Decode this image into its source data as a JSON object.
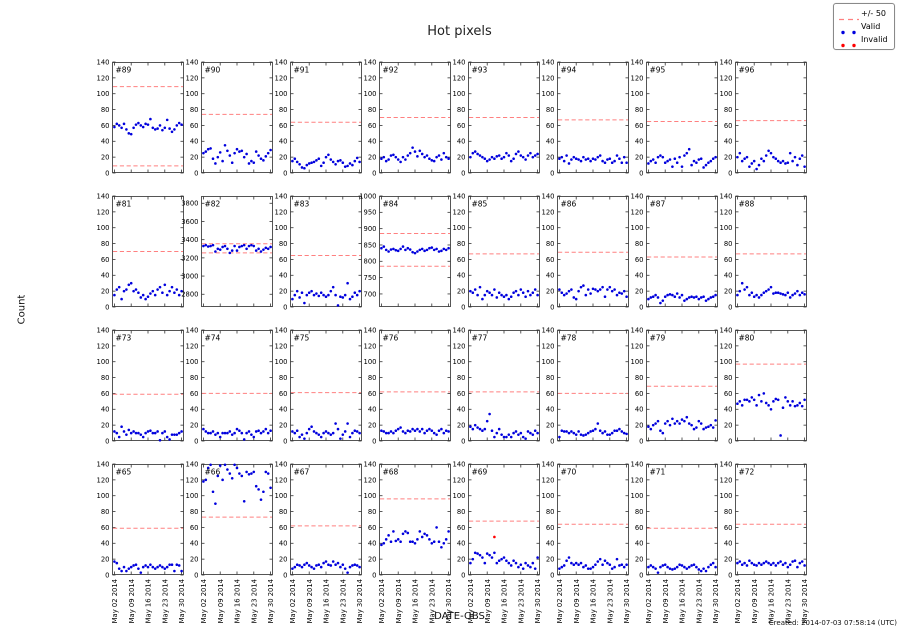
{
  "chart_data": {
    "type": "scatter",
    "title": "Hot pixels",
    "xlabel": "DATE-OBS",
    "ylabel": "Count",
    "created_note": "Created: 2014-07-03 07:58:14 (UTC)",
    "grid": false,
    "x_range_days": [
      1,
      31
    ],
    "x_tick_days": [
      2,
      9,
      16,
      23,
      30
    ],
    "x_tick_labels": [
      "May 02 2014",
      "May 09 2014",
      "May 16 2014",
      "May 23 2014",
      "May 30 2014"
    ],
    "start_day": 2,
    "default_ylim": [
      0,
      140
    ],
    "default_yticks": [
      0,
      20,
      40,
      60,
      80,
      100,
      120,
      140
    ],
    "colors": {
      "valid": "#0000dd",
      "invalid": "#ff0000",
      "threshold": "#ff8080",
      "frame": "#555555",
      "tick": "#333333",
      "text": "#000000"
    },
    "legend": {
      "position": "top-right",
      "items": [
        {
          "label": "+/- 50",
          "marker": "dashed-line",
          "color": "#ff8080"
        },
        {
          "label": "Valid",
          "marker": "dots",
          "color": "#0000dd"
        },
        {
          "label": "Invalid",
          "marker": "dots",
          "color": "#ff0000"
        }
      ]
    },
    "panels": [
      {
        "id": "#89",
        "upper": 109,
        "lower": 9,
        "values": [
          58,
          62,
          60,
          57,
          62,
          55,
          50,
          49,
          57,
          61,
          63,
          60,
          58,
          62,
          61,
          68,
          57,
          55,
          56,
          60,
          54,
          57,
          67,
          56,
          52,
          55,
          60,
          63,
          61
        ]
      },
      {
        "id": "#90",
        "upper": 74,
        "values": [
          25,
          27,
          30,
          31,
          18,
          12,
          20,
          26,
          15,
          35,
          28,
          22,
          13,
          25,
          30,
          27,
          28,
          20,
          24,
          12,
          15,
          13,
          27,
          22,
          18,
          16,
          21,
          25,
          29
        ]
      },
      {
        "id": "#91",
        "upper": 64,
        "values": [
          15,
          18,
          14,
          11,
          7,
          6,
          10,
          12,
          13,
          14,
          16,
          18,
          9,
          13,
          20,
          23,
          17,
          14,
          11,
          15,
          16,
          13,
          8,
          9,
          12,
          10,
          15,
          19,
          14
        ]
      },
      {
        "id": "#92",
        "upper": 70,
        "values": [
          18,
          20,
          15,
          17,
          22,
          23,
          20,
          17,
          14,
          20,
          17,
          22,
          25,
          32,
          27,
          21,
          28,
          24,
          20,
          22,
          18,
          16,
          15,
          20,
          22,
          17,
          25,
          20,
          18
        ]
      },
      {
        "id": "#93",
        "upper": 70,
        "values": [
          20,
          25,
          27,
          24,
          22,
          20,
          18,
          15,
          17,
          20,
          18,
          21,
          22,
          18,
          20,
          25,
          22,
          15,
          18,
          24,
          27,
          22,
          20,
          17,
          22,
          25,
          20,
          22,
          24
        ]
      },
      {
        "id": "#94",
        "upper": 67,
        "values": [
          18,
          20,
          15,
          22,
          12,
          17,
          20,
          18,
          17,
          15,
          20,
          17,
          18,
          15,
          18,
          17,
          20,
          22,
          15,
          13,
          17,
          18,
          13,
          15,
          22,
          18,
          13,
          20,
          13
        ]
      },
      {
        "id": "#95",
        "upper": 65,
        "values": [
          12,
          15,
          17,
          13,
          20,
          22,
          20,
          13,
          15,
          17,
          8,
          18,
          13,
          20,
          8,
          22,
          25,
          30,
          10,
          15,
          13,
          17,
          18,
          7,
          10,
          13,
          15,
          18,
          20
        ]
      },
      {
        "id": "#96",
        "upper": 66,
        "values": [
          20,
          25,
          15,
          18,
          20,
          8,
          12,
          15,
          5,
          10,
          18,
          15,
          22,
          28,
          25,
          20,
          18,
          15,
          13,
          15,
          12,
          13,
          25,
          15,
          20,
          10,
          18,
          22,
          8
        ]
      },
      {
        "id": "#81",
        "upper": 70,
        "values": [
          15,
          22,
          25,
          10,
          20,
          22,
          28,
          30,
          20,
          22,
          18,
          12,
          15,
          10,
          13,
          17,
          20,
          15,
          22,
          25,
          18,
          28,
          15,
          20,
          25,
          18,
          22,
          15,
          20
        ]
      },
      {
        "id": "#82",
        "ylim": [
          2660,
          3880
        ],
        "yticks": [
          2800,
          3000,
          3200,
          3400,
          3600,
          3800
        ],
        "upper": 3355,
        "lower": 3255,
        "values": [
          3330,
          3340,
          3325,
          3330,
          3340,
          3270,
          3300,
          3290,
          3320,
          3330,
          3300,
          3255,
          3280,
          3330,
          3280,
          3320,
          3330,
          3340,
          3300,
          3330,
          3340,
          3330,
          3280,
          3300,
          3270,
          3290,
          3310,
          3300,
          3320
        ]
      },
      {
        "id": "#83",
        "upper": 65,
        "values": [
          10,
          15,
          20,
          12,
          18,
          5,
          15,
          18,
          20,
          15,
          17,
          14,
          18,
          15,
          13,
          15,
          20,
          25,
          15,
          2,
          13,
          12,
          15,
          30,
          10,
          13,
          18,
          15,
          20
        ]
      },
      {
        "id": "#84",
        "ylim": [
          660,
          1000
        ],
        "yticks": [
          700,
          750,
          800,
          850,
          900,
          950,
          1000
        ],
        "upper": 885,
        "lower": 785,
        "values": [
          840,
          845,
          835,
          830,
          836,
          838,
          834,
          832,
          838,
          845,
          835,
          840,
          836,
          828,
          825,
          830,
          835,
          838,
          832,
          835,
          840,
          842,
          835,
          838,
          830,
          832,
          838,
          835,
          840
        ]
      },
      {
        "id": "#85",
        "upper": 67,
        "values": [
          20,
          18,
          22,
          15,
          25,
          10,
          15,
          20,
          18,
          15,
          22,
          12,
          18,
          15,
          13,
          15,
          10,
          13,
          18,
          20,
          15,
          22,
          18,
          13,
          20,
          15,
          18,
          22,
          15
        ]
      },
      {
        "id": "#86",
        "upper": 69,
        "values": [
          22,
          18,
          15,
          17,
          20,
          22,
          12,
          10,
          20,
          25,
          27,
          15,
          22,
          17,
          23,
          22,
          20,
          22,
          25,
          13,
          22,
          25,
          20,
          22,
          15,
          18,
          17,
          20,
          13
        ]
      },
      {
        "id": "#87",
        "upper": 63,
        "values": [
          10,
          12,
          13,
          15,
          12,
          5,
          8,
          13,
          15,
          16,
          15,
          13,
          17,
          12,
          15,
          8,
          10,
          12,
          13,
          12,
          13,
          10,
          12,
          13,
          8,
          10,
          12,
          13,
          15
        ]
      },
      {
        "id": "#88",
        "upper": 67,
        "values": [
          15,
          20,
          30,
          22,
          25,
          15,
          18,
          13,
          15,
          12,
          15,
          18,
          20,
          22,
          25,
          17,
          18,
          18,
          17,
          16,
          15,
          18,
          12,
          15,
          17,
          20,
          15,
          18,
          16
        ]
      },
      {
        "id": "#73",
        "upper": 59,
        "values": [
          12,
          10,
          5,
          18,
          12,
          8,
          14,
          10,
          12,
          10,
          10,
          8,
          5,
          10,
          12,
          13,
          10,
          10,
          12,
          1,
          10,
          12,
          5,
          2,
          8,
          8,
          8,
          10,
          12
        ]
      },
      {
        "id": "#74",
        "upper": 60,
        "values": [
          15,
          12,
          10,
          10,
          12,
          8,
          10,
          5,
          10,
          10,
          10,
          12,
          8,
          10,
          15,
          13,
          10,
          2,
          10,
          12,
          8,
          5,
          12,
          13,
          10,
          12,
          15,
          10,
          13
        ]
      },
      {
        "id": "#75",
        "upper": 61,
        "values": [
          12,
          10,
          13,
          5,
          8,
          3,
          10,
          15,
          18,
          12,
          10,
          8,
          5,
          10,
          12,
          10,
          8,
          10,
          22,
          15,
          3,
          8,
          12,
          22,
          5,
          10,
          13,
          12,
          10
        ]
      },
      {
        "id": "#76",
        "upper": 62,
        "values": [
          13,
          12,
          10,
          10,
          12,
          10,
          13,
          15,
          17,
          12,
          10,
          13,
          12,
          15,
          13,
          15,
          12,
          15,
          10,
          13,
          15,
          13,
          10,
          8,
          13,
          15,
          10,
          13,
          12
        ]
      },
      {
        "id": "#77",
        "upper": 62,
        "values": [
          18,
          15,
          20,
          17,
          15,
          13,
          15,
          25,
          34,
          13,
          5,
          10,
          15,
          8,
          5,
          5,
          8,
          5,
          10,
          12,
          8,
          10,
          5,
          3,
          12,
          10,
          8,
          13,
          10
        ]
      },
      {
        "id": "#78",
        "upper": 60,
        "values": [
          5,
          13,
          12,
          12,
          10,
          12,
          10,
          8,
          12,
          8,
          7,
          8,
          10,
          12,
          13,
          15,
          22,
          13,
          10,
          12,
          8,
          8,
          10,
          13,
          13,
          15,
          12,
          10,
          9
        ]
      },
      {
        "id": "#79",
        "upper": 69,
        "values": [
          18,
          15,
          20,
          22,
          25,
          13,
          10,
          22,
          25,
          20,
          28,
          22,
          25,
          22,
          27,
          25,
          30,
          22,
          20,
          15,
          17,
          25,
          22,
          15,
          17,
          18,
          20,
          17,
          26
        ]
      },
      {
        "id": "#80",
        "upper": 97,
        "values": [
          47,
          50,
          45,
          52,
          52,
          50,
          55,
          52,
          45,
          58,
          50,
          60,
          48,
          45,
          40,
          50,
          53,
          52,
          7,
          42,
          55,
          50,
          45,
          50,
          44,
          45,
          48,
          44,
          52
        ]
      },
      {
        "id": "#65",
        "upper": 59,
        "values": [
          17,
          15,
          8,
          5,
          10,
          5,
          8,
          10,
          12,
          13,
          8,
          3,
          10,
          12,
          10,
          13,
          10,
          8,
          10,
          12,
          10,
          8,
          10,
          13,
          13,
          5,
          13,
          12,
          5
        ]
      },
      {
        "id": "#66",
        "upper": 73,
        "values": [
          118,
          120,
          135,
          139,
          105,
          90,
          125,
          138,
          120,
          139,
          133,
          128,
          122,
          139,
          135,
          128,
          125,
          93,
          130,
          127,
          128,
          130,
          112,
          108,
          95,
          105,
          130,
          128,
          110
        ]
      },
      {
        "id": "#67",
        "upper": 62,
        "values": [
          8,
          10,
          13,
          12,
          10,
          13,
          15,
          12,
          10,
          8,
          12,
          13,
          10,
          15,
          17,
          13,
          12,
          17,
          13,
          15,
          10,
          13,
          8,
          3,
          10,
          12,
          13,
          12,
          10
        ]
      },
      {
        "id": "#68",
        "upper": 96,
        "values": [
          38,
          40,
          45,
          50,
          42,
          55,
          43,
          45,
          42,
          52,
          55,
          53,
          42,
          42,
          40,
          45,
          55,
          48,
          52,
          50,
          45,
          40,
          42,
          60,
          42,
          35,
          40,
          45,
          55
        ]
      },
      {
        "id": "#69",
        "upper": 68,
        "values": [
          15,
          20,
          28,
          27,
          25,
          22,
          15,
          27,
          25,
          22,
          28,
          15,
          18,
          20,
          22,
          18,
          15,
          12,
          18,
          15,
          10,
          13,
          8,
          15,
          12,
          10,
          15,
          8,
          22
        ],
        "invalid": [
          [
            12,
            48
          ]
        ]
      },
      {
        "id": "#70",
        "upper": 64,
        "values": [
          8,
          10,
          12,
          18,
          22,
          15,
          13,
          15,
          13,
          15,
          10,
          12,
          8,
          8,
          10,
          13,
          17,
          20,
          13,
          18,
          15,
          13,
          8,
          10,
          20,
          12,
          13,
          10,
          13
        ]
      },
      {
        "id": "#71",
        "upper": 59,
        "values": [
          10,
          12,
          10,
          8,
          3,
          10,
          12,
          13,
          10,
          8,
          7,
          8,
          10,
          13,
          12,
          10,
          8,
          10,
          12,
          13,
          10,
          7,
          5,
          8,
          5,
          10,
          13,
          15,
          10
        ]
      },
      {
        "id": "#72",
        "upper": 64,
        "values": [
          15,
          17,
          13,
          15,
          12,
          18,
          15,
          13,
          12,
          15,
          13,
          15,
          17,
          15,
          13,
          15,
          12,
          15,
          17,
          13,
          15,
          10,
          13,
          17,
          18,
          10,
          15,
          17,
          12
        ]
      }
    ]
  }
}
